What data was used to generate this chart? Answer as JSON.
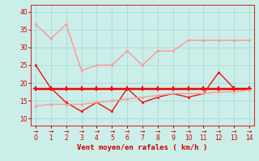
{
  "x": [
    0,
    1,
    2,
    3,
    4,
    5,
    6,
    7,
    8,
    9,
    10,
    11,
    12,
    13,
    14
  ],
  "line_pink_solid": [
    36.5,
    32.5,
    36.5,
    23.5,
    25,
    25,
    29,
    25,
    29,
    29,
    32,
    32,
    32,
    32,
    32
  ],
  "line_pink_dotted": [
    36.5,
    32.5,
    36.5,
    23.5,
    25,
    25,
    29,
    25,
    29,
    29,
    32,
    32,
    32,
    32,
    32
  ],
  "line_red_flat": [
    18.5,
    18.5,
    18.5,
    18.5,
    18.5,
    18.5,
    18.5,
    18.5,
    18.5,
    18.5,
    18.5,
    18.5,
    18.5,
    18.5,
    18.5
  ],
  "line_red_variable": [
    25,
    18.5,
    14.5,
    12,
    14.5,
    12,
    18.5,
    14.5,
    16,
    17,
    16,
    17,
    23,
    18.5,
    18.5
  ],
  "line_pink_rising": [
    13.5,
    14,
    14,
    14,
    14.5,
    15,
    15.5,
    16,
    16.5,
    17,
    17,
    17,
    17.5,
    17.5,
    18
  ],
  "color_light_pink": "#ff9999",
  "color_dark_red": "#ee1111",
  "bg_color": "#cceee8",
  "grid_color": "#aadddd",
  "xlabel": "Vent moyen/en rafales ( km/h )",
  "ylim": [
    8,
    42
  ],
  "xlim": [
    -0.3,
    14.3
  ],
  "yticks": [
    10,
    15,
    20,
    25,
    30,
    35,
    40
  ]
}
